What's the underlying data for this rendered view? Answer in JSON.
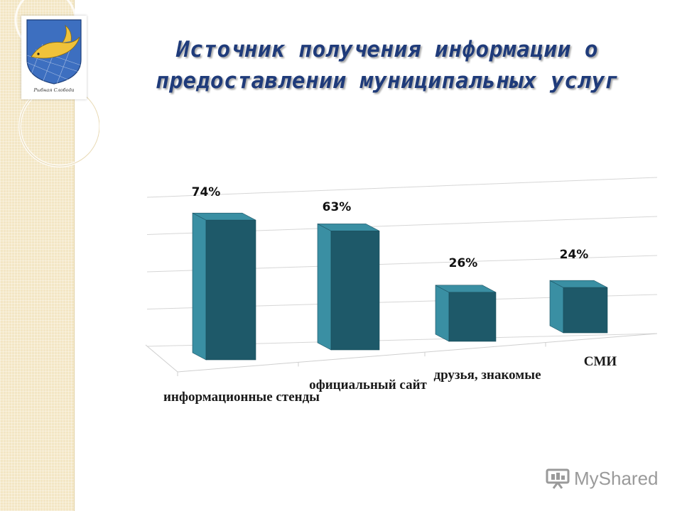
{
  "slide": {
    "title_line1": "Источник получения информации о",
    "title_line2": "предоставлении муниципальных услуг",
    "logo_caption": "Рыбная Слобода",
    "watermark": "MyShared",
    "colors": {
      "title": "#1f3b7a",
      "bar_front": "#2b7486",
      "bar_side": "#1e5969",
      "bar_top": "#3a8fa3",
      "band": "#f3e6c4"
    },
    "icons": [
      "coat-of-arms-icon",
      "presentation-board-icon"
    ]
  },
  "chart_data": {
    "type": "bar",
    "categories": [
      "информационные стенды",
      "официальный сайт",
      "друзья, знакомые",
      "СМИ"
    ],
    "values": [
      74,
      63,
      26,
      24
    ],
    "value_labels": [
      "74%",
      "63%",
      "26%",
      "24%"
    ],
    "title": "",
    "xlabel": "",
    "ylabel": "",
    "ylim": [
      0,
      100
    ],
    "unit": "%",
    "grid": true,
    "legend": "none",
    "style": "3d-perspective"
  }
}
